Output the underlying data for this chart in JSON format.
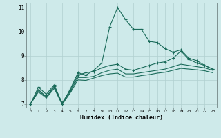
{
  "xlabel": "Humidex (Indice chaleur)",
  "bg_color": "#ceeaea",
  "grid_color": "#b0d0d0",
  "line_color": "#1a6b5a",
  "xlim": [
    -0.5,
    23.5
  ],
  "ylim": [
    6.85,
    11.2
  ],
  "yticks": [
    7,
    8,
    9,
    10,
    11
  ],
  "xticks": [
    0,
    1,
    2,
    3,
    4,
    5,
    6,
    7,
    8,
    9,
    10,
    11,
    12,
    13,
    14,
    15,
    16,
    17,
    18,
    19,
    20,
    21,
    22,
    23
  ],
  "series": [
    {
      "x": [
        0,
        1,
        2,
        3,
        4,
        5,
        6,
        7,
        8,
        9,
        10,
        11,
        12,
        13,
        14,
        15,
        16,
        17,
        18,
        19,
        20,
        21,
        22,
        23
      ],
      "y": [
        7.0,
        7.7,
        7.4,
        7.8,
        7.0,
        7.6,
        8.3,
        8.2,
        8.4,
        8.7,
        10.2,
        11.0,
        10.5,
        10.1,
        10.1,
        9.6,
        9.55,
        9.3,
        9.15,
        9.25,
        8.9,
        8.8,
        8.6,
        8.45
      ],
      "marker": true
    },
    {
      "x": [
        0,
        1,
        2,
        3,
        4,
        5,
        6,
        7,
        8,
        9,
        10,
        11,
        12,
        13,
        14,
        15,
        16,
        17,
        18,
        19,
        20,
        21,
        22,
        23
      ],
      "y": [
        7.0,
        7.6,
        7.3,
        7.75,
        7.05,
        7.55,
        8.2,
        8.3,
        8.35,
        8.5,
        8.6,
        8.65,
        8.45,
        8.4,
        8.5,
        8.6,
        8.7,
        8.75,
        8.9,
        9.2,
        8.85,
        8.7,
        8.6,
        8.45
      ],
      "marker": true
    },
    {
      "x": [
        0,
        1,
        2,
        3,
        4,
        5,
        6,
        7,
        8,
        9,
        10,
        11,
        12,
        13,
        14,
        15,
        16,
        17,
        18,
        19,
        20,
        21,
        22,
        23
      ],
      "y": [
        7.0,
        7.55,
        7.3,
        7.7,
        7.0,
        7.5,
        8.1,
        8.1,
        8.15,
        8.3,
        8.4,
        8.45,
        8.25,
        8.25,
        8.3,
        8.35,
        8.4,
        8.45,
        8.55,
        8.65,
        8.6,
        8.55,
        8.5,
        8.4
      ],
      "marker": false
    },
    {
      "x": [
        0,
        1,
        2,
        3,
        4,
        5,
        6,
        7,
        8,
        9,
        10,
        11,
        12,
        13,
        14,
        15,
        16,
        17,
        18,
        19,
        20,
        21,
        22,
        23
      ],
      "y": [
        7.0,
        7.5,
        7.25,
        7.65,
        6.98,
        7.45,
        8.0,
        7.98,
        8.08,
        8.18,
        8.25,
        8.28,
        8.12,
        8.12,
        8.18,
        8.22,
        8.28,
        8.32,
        8.4,
        8.48,
        8.45,
        8.42,
        8.38,
        8.3
      ],
      "marker": false
    }
  ]
}
